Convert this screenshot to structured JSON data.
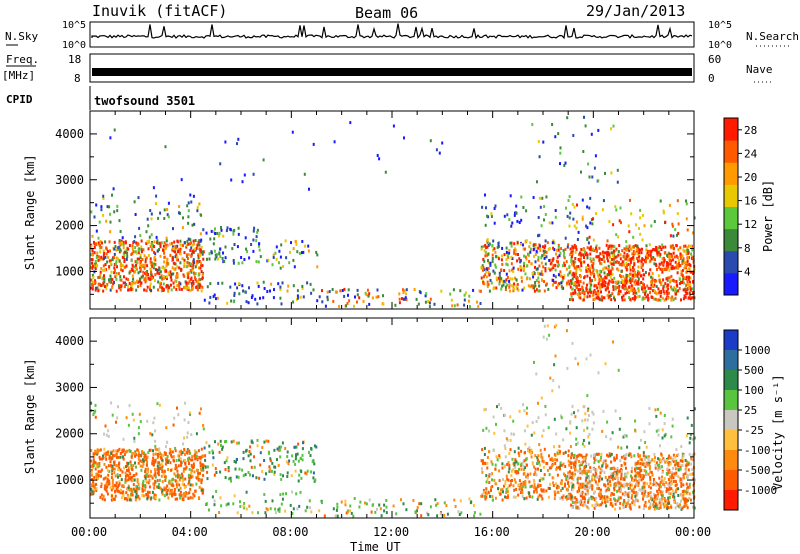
{
  "header": {
    "station": "Inuvik (fitACF)",
    "beam": "Beam 06",
    "date": "29/Jan/2013"
  },
  "side_labels": {
    "nsky": "N.Sky",
    "nsearch": "N.Search",
    "freq": "Freq.",
    "freq_unit": "[MHz]",
    "nave": "Nave",
    "cpid": "CPID",
    "cpid_value": "twofsound 3501"
  },
  "chart_data": [
    {
      "type": "line",
      "panel": "noise",
      "left_ticks": [
        "10^5",
        "10^0"
      ],
      "right_ticks": [
        "10^5",
        "10^0"
      ],
      "left_label": "N.Sky",
      "right_label": "N.Search",
      "scale": "log",
      "range": [
        1,
        100000
      ]
    },
    {
      "type": "line",
      "panel": "frequency",
      "left_ticks": [
        "18",
        "8"
      ],
      "right_ticks": [
        "60",
        "0"
      ],
      "left_label": "Freq. [MHz]",
      "right_label": "Nave",
      "ylim": [
        8,
        18
      ]
    },
    {
      "type": "heatmap",
      "panel": "power",
      "xlabel": "",
      "ylabel": "Slant Range [km]",
      "x_ticks": [
        "00:00",
        "04:00",
        "08:00",
        "12:00",
        "16:00",
        "20:00",
        "00:00"
      ],
      "xlim_hours": [
        0,
        24
      ],
      "y_ticks": [
        1000,
        2000,
        3000,
        4000
      ],
      "ylim": [
        180,
        4500
      ],
      "colorbar": {
        "label": "Power [dB]",
        "ticks": [
          4,
          8,
          12,
          16,
          20,
          24,
          28
        ],
        "range": [
          0,
          30
        ],
        "colors": [
          "#1a1aff",
          "#2a4ab0",
          "#3a8a3a",
          "#5cc83c",
          "#e8c800",
          "#ff9a00",
          "#ff5a00",
          "#ff1a00"
        ]
      }
    },
    {
      "type": "heatmap",
      "panel": "velocity",
      "xlabel": "Time UT",
      "ylabel": "Slant Range [km]",
      "x_ticks": [
        "00:00",
        "04:00",
        "08:00",
        "12:00",
        "16:00",
        "20:00",
        "00:00"
      ],
      "xlim_hours": [
        0,
        24
      ],
      "y_ticks": [
        1000,
        2000,
        3000,
        4000
      ],
      "ylim": [
        180,
        4500
      ],
      "colorbar": {
        "label": "Velocity [m s⁻¹]",
        "ticks": [
          "1000",
          "500",
          "100",
          "25",
          "-25",
          "-100",
          "-500",
          "-1000"
        ],
        "colors": [
          "#1c3cc8",
          "#2e6e9e",
          "#2e8a4a",
          "#58c440",
          "#c8c8c0",
          "#ffc040",
          "#ff8a10",
          "#ff5a00",
          "#ff1a00"
        ]
      }
    }
  ]
}
